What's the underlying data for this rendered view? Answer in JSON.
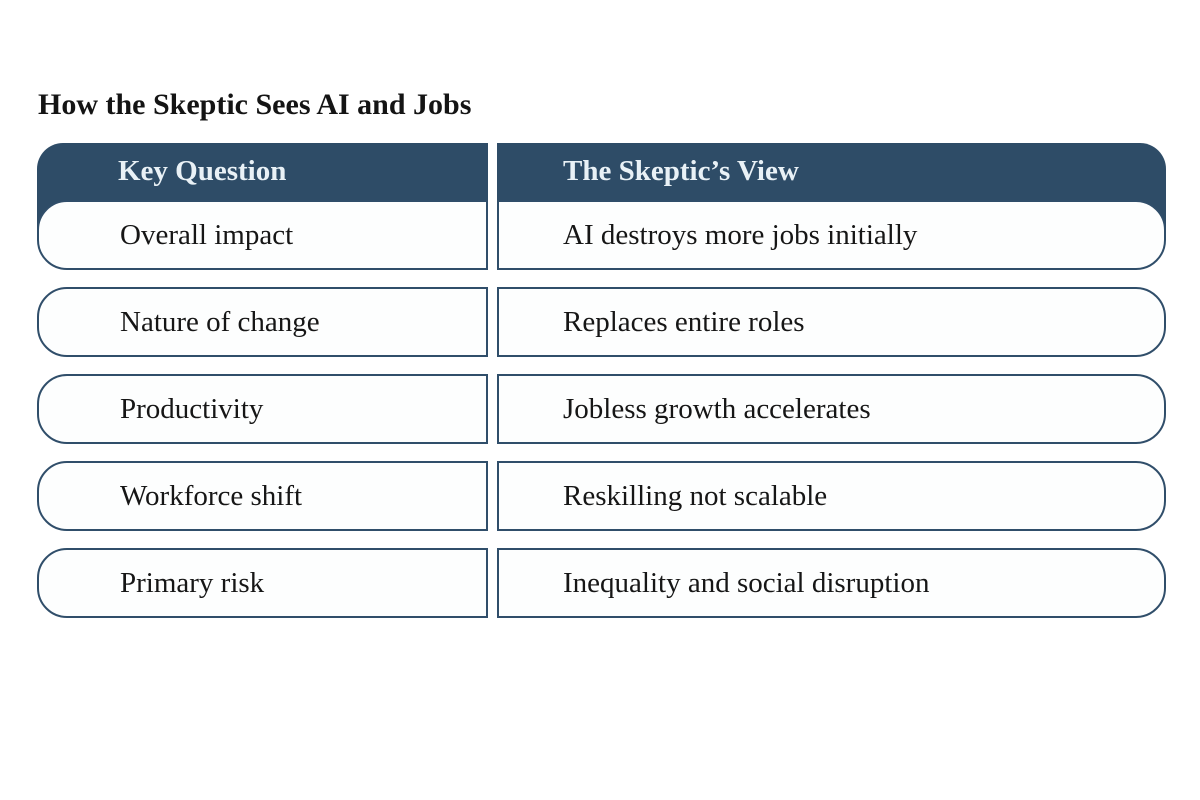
{
  "title": "How the Skeptic Sees AI and Jobs",
  "table": {
    "headers": [
      "Key Question",
      "The Skeptic’s View"
    ],
    "rows": [
      {
        "question": "Overall impact",
        "view": "AI destroys more jobs initially"
      },
      {
        "question": "Nature of change",
        "view": "Replaces entire roles"
      },
      {
        "question": "Productivity",
        "view": "Jobless growth accelerates"
      },
      {
        "question": "Workforce shift",
        "view": "Reskilling not scalable"
      },
      {
        "question": "Primary risk",
        "view": "Inequality and social disruption"
      }
    ]
  },
  "theme": {
    "navy": "#2e4c67",
    "border_navy": "#304e6a",
    "header_text": "#e9f1f6",
    "body_text": "#161616",
    "row_bg": "#fdfefe",
    "page_bg": "#ffffff"
  }
}
